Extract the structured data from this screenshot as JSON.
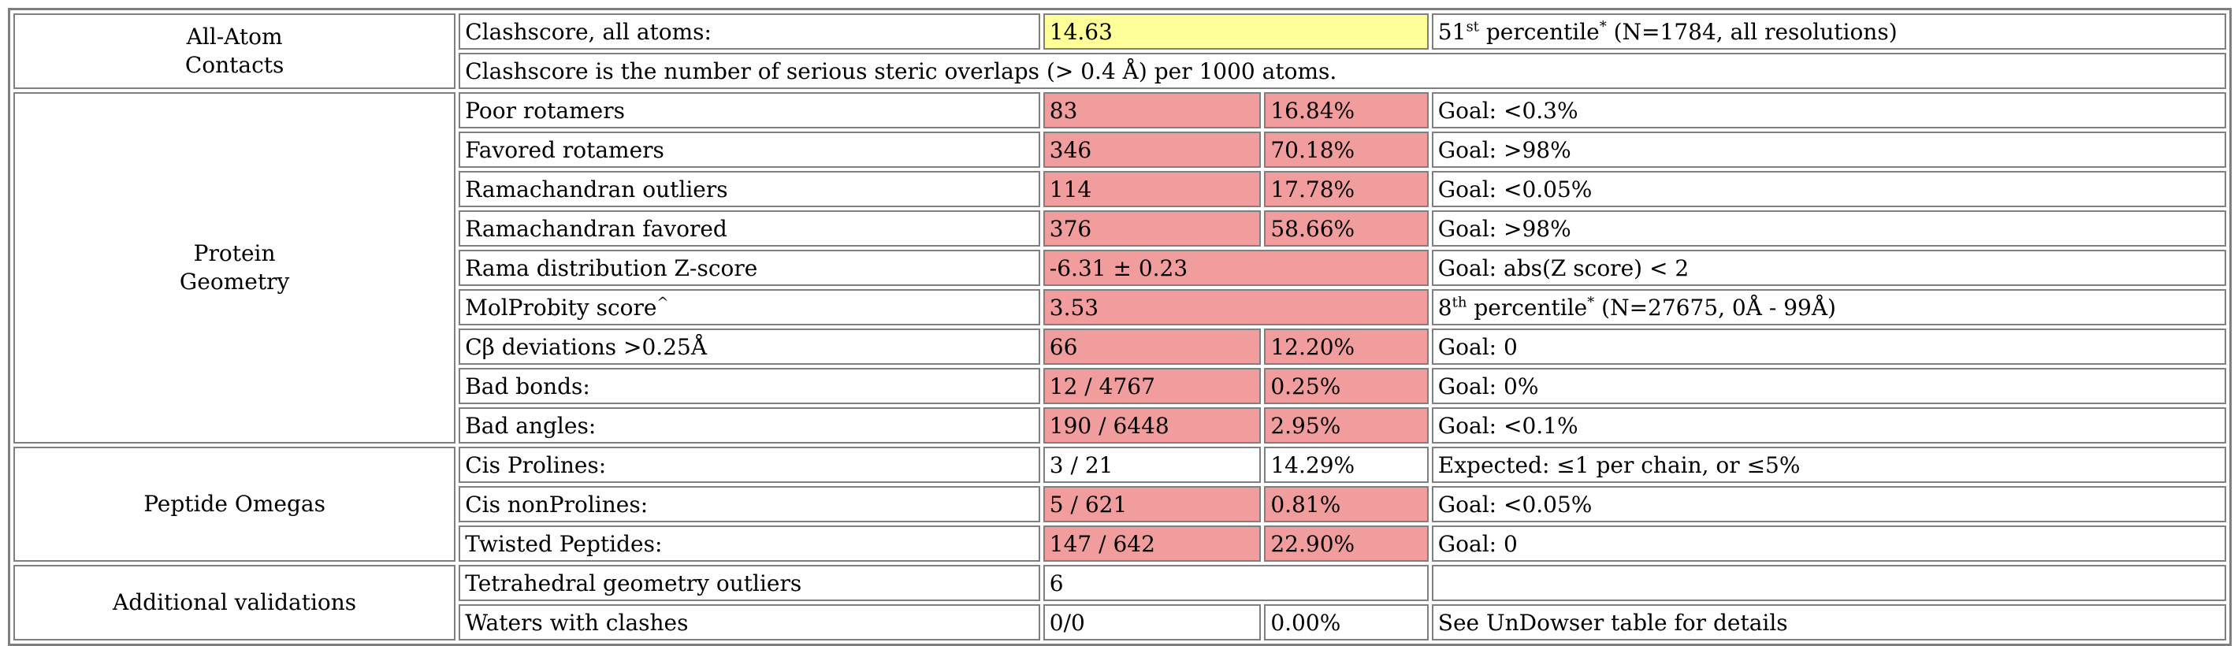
{
  "colors": {
    "red": "#f29d9d",
    "yellow": "#ffff99",
    "border": "#7f7f7f"
  },
  "sections": {
    "all_atom": {
      "label_line1": "All-Atom",
      "label_line2": "Contacts",
      "clashscore": {
        "label": "Clashscore, all atoms:",
        "value": "14.63",
        "percentile_num": "51",
        "percentile_sup": "st",
        "percentile_text": " percentile",
        "percentile_star": "*",
        "percentile_note": " (N=1784, all resolutions)"
      },
      "description": "Clashscore is the number of serious steric overlaps (> 0.4 Å) per 1000 atoms."
    },
    "protein_geometry": {
      "label_line1": "Protein",
      "label_line2": "Geometry",
      "rows": {
        "poor_rotamers": {
          "label": "Poor rotamers",
          "count": "83",
          "percent": "16.84%",
          "goal": "Goal: <0.3%"
        },
        "favored_rotamers": {
          "label": "Favored rotamers",
          "count": "346",
          "percent": "70.18%",
          "goal": "Goal: >98%"
        },
        "rama_outliers": {
          "label": "Ramachandran outliers",
          "count": "114",
          "percent": "17.78%",
          "goal": "Goal: <0.05%"
        },
        "rama_favored": {
          "label": "Ramachandran favored",
          "count": "376",
          "percent": "58.66%",
          "goal": "Goal: >98%"
        },
        "rama_z": {
          "label": "Rama distribution Z-score",
          "value": "-6.31 ± 0.23",
          "goal": "Goal: abs(Z score) < 2"
        },
        "molprobity": {
          "label": "MolProbity score",
          "label_sup": "^",
          "value": "3.53",
          "percentile_num": "8",
          "percentile_sup": "th",
          "percentile_text": " percentile",
          "percentile_star": "*",
          "percentile_note": " (N=27675, 0Å - 99Å)"
        },
        "cb_dev": {
          "label": "Cβ deviations >0.25Å",
          "count": "66",
          "percent": "12.20%",
          "goal": "Goal: 0"
        },
        "bad_bonds": {
          "label": "Bad bonds:",
          "count": "12 / 4767",
          "percent": "0.25%",
          "goal": "Goal: 0%"
        },
        "bad_angles": {
          "label": "Bad angles:",
          "count": "190 / 6448",
          "percent": "2.95%",
          "goal": "Goal: <0.1%"
        }
      }
    },
    "peptide_omegas": {
      "label": "Peptide Omegas",
      "rows": {
        "cis_prolines": {
          "label": "Cis Prolines:",
          "count": "3 / 21",
          "percent": "14.29%",
          "goal": "Expected: ≤1 per chain, or ≤5%"
        },
        "cis_nonprolines": {
          "label": "Cis nonProlines:",
          "count": "5 / 621",
          "percent": "0.81%",
          "goal": "Goal: <0.05%"
        },
        "twisted": {
          "label": "Twisted Peptides:",
          "count": "147 / 642",
          "percent": "22.90%",
          "goal": "Goal: 0"
        }
      }
    },
    "additional": {
      "label": "Additional validations",
      "rows": {
        "tetrahedral": {
          "label": "Tetrahedral geometry outliers",
          "value": "6",
          "goal": ""
        },
        "waters": {
          "label": "Waters with clashes",
          "count": "0/0",
          "percent": "0.00%",
          "goal": "See UnDowser table for details"
        }
      }
    }
  }
}
